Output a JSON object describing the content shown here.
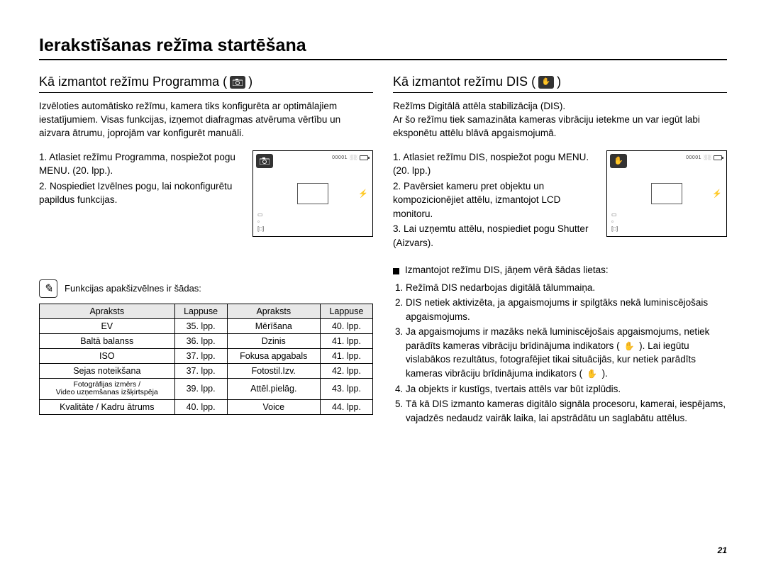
{
  "page": {
    "title": "Ierakstīšanas režīma startēšana",
    "number": "21"
  },
  "left": {
    "heading": "Kā izmantot režīmu Programma (",
    "heading_close": ")",
    "mode_icon": "camera-icon",
    "intro": "Izvēloties automātisko režīmu, kamera tiks konfigurēta ar optimālajiem iestatījumiem. Visas funkcijas, izņemot diafragmas atvēruma vērtību un aizvara ātrumu, joprojām var konfigurēt manuāli.",
    "steps": [
      "1. Atlasiet režīmu Programma, nospiežot pogu MENU. (20. lpp.).",
      "2. Nospiediet Izvēlnes pogu, lai nokonfigurētu papildus funkcijas."
    ],
    "note": "Funkcijas apakšizvēlnes ir šādas:",
    "table": {
      "headers": [
        "Apraksts",
        "Lappuse",
        "Apraksts",
        "Lappuse"
      ],
      "rows": [
        [
          "EV",
          "35. lpp.",
          "Mērīšana",
          "40. lpp."
        ],
        [
          "Baltā balanss",
          "36. lpp.",
          "Dzinis",
          "41. lpp."
        ],
        [
          "ISO",
          "37. lpp.",
          "Fokusa apgabals",
          "41. lpp."
        ],
        [
          "Sejas noteikšana",
          "37. lpp.",
          "Fotostil.Izv.",
          "42. lpp."
        ],
        [
          "Fotogrāfijas izmērs /\nVideo uzņemšanas izšķirtspēja",
          "39. lpp.",
          "Attēl.pielāg.",
          "43. lpp."
        ],
        [
          "Kvalitāte / Kadru ātrums",
          "40. lpp.",
          "Voice",
          "44. lpp."
        ]
      ]
    }
  },
  "right": {
    "heading": "Kā izmantot režīmu DIS (",
    "heading_close": ")",
    "mode_icon": "hand-icon",
    "intro": "Režīms Digitālā attēla stabilizācija (DIS).\nAr šo režīmu tiek samazināta kameras vibrāciju ietekme un var iegūt labi eksponētu attēlu blāvā apgaismojumā.",
    "steps": [
      "1. Atlasiet režīmu DIS, nospiežot pogu MENU. (20. lpp.)",
      "2. Pavērsiet kameru pret objektu un kompozicionējiet attēlu, izmantojot LCD monitoru.",
      "3. Lai uzņemtu attēlu, nospiediet pogu Shutter (Aizvars)."
    ],
    "notes_heading": "Izmantojot režīmu DIS, jāņem vērā šādas lietas:",
    "notes": [
      "Režīmā DIS nedarbojas digitālā tālummaiņa.",
      "DIS netiek aktivizēta, ja apgaismojums ir spilgtāks nekā luminiscējošais apgaismojums.",
      "Ja apgaismojums ir mazāks nekā luminiscējošais apgaismojums, netiek parādīts kameras vibrāciju brīdinājuma indikators ( ✋ ). Lai iegūtu vislabākos rezultātus, fotografējiet tikai situācijās, kur netiek parādīts kameras vibrāciju brīdinājuma indikators ( ✋ ).",
      "Ja objekts ir kustīgs, tvertais attēls var būt izplūdis.",
      "Tā kā DIS izmanto kameras digitālo signāla procesoru, kamerai, iespējams, vajadzēs nedaudz vairāk laika, lai apstrādātu un saglabātu attēlus."
    ]
  },
  "lcd": {
    "counter": "00001",
    "res": "░░"
  },
  "colors": {
    "text": "#000000",
    "background": "#ffffff",
    "header_bg": "#e8e8e8",
    "icon_bg": "#333333",
    "border": "#000000"
  }
}
